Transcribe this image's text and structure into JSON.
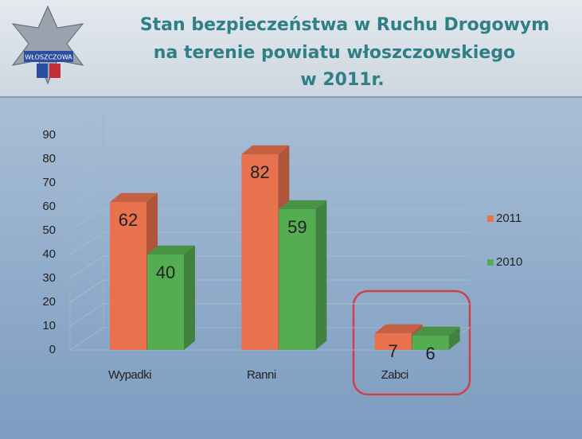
{
  "chart_data": {
    "type": "bar",
    "title": [
      "Stan bezpieczeństwa w Ruchu Drogowym",
      "na terenie powiatu włoszczowskiego",
      "w  2011r."
    ],
    "logo_text": "WŁOSZCZOWA",
    "categories": [
      "Wypadki",
      "Ranni",
      "Zabci"
    ],
    "series": [
      {
        "name": "2011",
        "color": "#e8714e",
        "values": [
          62,
          82,
          7
        ]
      },
      {
        "name": "2010",
        "color": "#55ad52",
        "values": [
          40,
          59,
          6
        ]
      }
    ],
    "ylim": [
      0,
      90
    ],
    "yticks": [
      0,
      10,
      20,
      30,
      40,
      50,
      60,
      70,
      80,
      90
    ],
    "grid": true,
    "legend": "right"
  }
}
